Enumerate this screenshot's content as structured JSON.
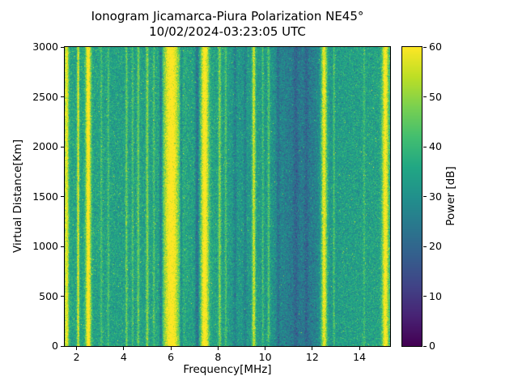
{
  "chart_data": {
    "type": "heatmap",
    "title": "Ionogram Jicamarca-Piura Polarization NE45°",
    "subtitle": "10/02/2024-03:23:05 UTC",
    "xlabel": "Frequency[MHz]",
    "ylabel": "Virtual Distance[Km]",
    "xlim": [
      1.5,
      15.3
    ],
    "ylim": [
      0,
      3000
    ],
    "x_ticks": [
      2,
      4,
      6,
      8,
      10,
      12,
      14
    ],
    "y_ticks": [
      0,
      500,
      1000,
      1500,
      2000,
      2500,
      3000
    ],
    "colorbar": {
      "label": "Power [dB]",
      "ticks": [
        0,
        10,
        20,
        30,
        40,
        50,
        60
      ],
      "range": [
        0,
        60
      ]
    },
    "colormap": "viridis",
    "colormap_stops": [
      "#440154",
      "#482475",
      "#414487",
      "#355f8d",
      "#2a788e",
      "#21918c",
      "#22a884",
      "#44bf70",
      "#7ad151",
      "#bddf26",
      "#fde725"
    ],
    "noise_std_db": 4.2,
    "background_profile_db": [
      [
        1.5,
        35
      ],
      [
        2.0,
        35
      ],
      [
        3.0,
        34.5
      ],
      [
        4.0,
        34
      ],
      [
        5.0,
        34
      ],
      [
        6.6,
        34.5
      ],
      [
        7.0,
        34
      ],
      [
        8.0,
        34.5
      ],
      [
        8.6,
        32.5
      ],
      [
        9.0,
        32
      ],
      [
        9.8,
        33
      ],
      [
        10.3,
        31
      ],
      [
        10.7,
        27
      ],
      [
        11.0,
        25
      ],
      [
        11.5,
        24.5
      ],
      [
        12.0,
        25
      ],
      [
        12.3,
        28
      ],
      [
        12.8,
        32
      ],
      [
        13.2,
        33.5
      ],
      [
        14.0,
        34
      ],
      [
        15.3,
        34.5
      ]
    ],
    "rfi_bands": [
      {
        "freq": 1.58,
        "sigma": 0.06,
        "amp": 26
      },
      {
        "freq": 2.07,
        "sigma": 0.035,
        "amp": 24
      },
      {
        "freq": 2.5,
        "sigma": 0.08,
        "amp": 30
      },
      {
        "freq": 3.05,
        "sigma": 0.03,
        "amp": 8
      },
      {
        "freq": 3.35,
        "sigma": 0.03,
        "amp": 8
      },
      {
        "freq": 4.12,
        "sigma": 0.035,
        "amp": 12
      },
      {
        "freq": 4.38,
        "sigma": 0.03,
        "amp": 9
      },
      {
        "freq": 4.62,
        "sigma": 0.035,
        "amp": 13
      },
      {
        "freq": 5.0,
        "sigma": 0.04,
        "amp": 15
      },
      {
        "freq": 5.28,
        "sigma": 0.03,
        "amp": 9
      },
      {
        "freq": 6.02,
        "sigma": 0.24,
        "amp": 30
      },
      {
        "freq": 7.44,
        "sigma": 0.12,
        "amp": 30
      },
      {
        "freq": 8.07,
        "sigma": 0.04,
        "amp": 15
      },
      {
        "freq": 8.33,
        "sigma": 0.03,
        "amp": 10
      },
      {
        "freq": 9.52,
        "sigma": 0.055,
        "amp": 23
      },
      {
        "freq": 9.9,
        "sigma": 0.03,
        "amp": 9
      },
      {
        "freq": 10.15,
        "sigma": 0.04,
        "amp": 12
      },
      {
        "freq": 12.5,
        "sigma": 0.09,
        "amp": 30
      },
      {
        "freq": 12.92,
        "sigma": 0.03,
        "amp": 10
      },
      {
        "freq": 14.2,
        "sigma": 0.03,
        "amp": 7
      },
      {
        "freq": 15.1,
        "sigma": 0.1,
        "amp": 28
      },
      {
        "freq": 5.58,
        "sigma": 0.05,
        "amp": -14
      },
      {
        "freq": 6.44,
        "sigma": 0.04,
        "amp": -11
      },
      {
        "freq": 7.12,
        "sigma": 0.06,
        "amp": -12
      },
      {
        "freq": 8.72,
        "sigma": 0.05,
        "amp": -6
      },
      {
        "freq": 9.15,
        "sigma": 0.04,
        "amp": -6
      },
      {
        "freq": 10.55,
        "sigma": 0.05,
        "amp": -6
      },
      {
        "freq": 11.3,
        "sigma": 0.08,
        "amp": -5
      },
      {
        "freq": 11.75,
        "sigma": 0.06,
        "amp": -5
      }
    ]
  }
}
